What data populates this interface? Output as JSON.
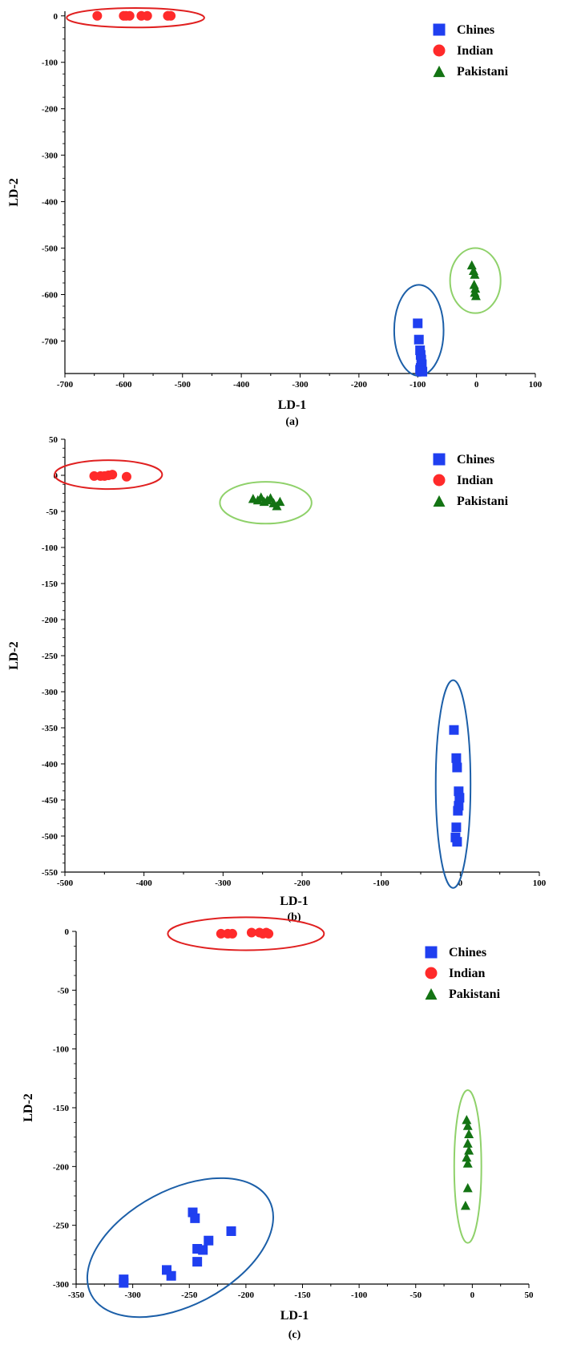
{
  "colors": {
    "Chines": "#1f3ff0",
    "Indian": "#ff2a2a",
    "Pakistani": "#137313",
    "ellipse_Chines": "#1c5fa8",
    "ellipse_Indian": "#e02020",
    "ellipse_Pakistani": "#8fd16a"
  },
  "chart_data": [
    {
      "type": "scatter",
      "panel_label": "(a)",
      "xlabel": "LD-1",
      "ylabel": "LD-2",
      "xlim": [
        -700,
        100
      ],
      "ylim": [
        -770,
        10
      ],
      "xticks": [
        -700,
        -600,
        -500,
        -400,
        -300,
        -200,
        -100,
        0,
        100
      ],
      "yticks": [
        0,
        -100,
        -200,
        -300,
        -400,
        -500,
        -600,
        -700
      ],
      "legend": "top-right",
      "series": [
        {
          "name": "Chines",
          "marker": "square",
          "points": [
            [
              -100,
              -662
            ],
            [
              -98,
              -697
            ],
            [
              -96,
              -720
            ],
            [
              -95,
              -730
            ],
            [
              -94,
              -740
            ],
            [
              -93,
              -750
            ],
            [
              -95,
              -758
            ],
            [
              -96,
              -762
            ],
            [
              -94,
              -765
            ],
            [
              -92,
              -766
            ]
          ]
        },
        {
          "name": "Indian",
          "marker": "circle",
          "points": [
            [
              -645,
              0
            ],
            [
              -600,
              0
            ],
            [
              -596,
              0
            ],
            [
              -590,
              0
            ],
            [
              -570,
              0
            ],
            [
              -560,
              0
            ],
            [
              -525,
              0
            ],
            [
              -520,
              0
            ]
          ]
        },
        {
          "name": "Pakistani",
          "marker": "triangle",
          "points": [
            [
              -8,
              -536
            ],
            [
              -5,
              -548
            ],
            [
              -3,
              -556
            ],
            [
              -4,
              -578
            ],
            [
              -2,
              -586
            ],
            [
              -3,
              -595
            ],
            [
              -1,
              -602
            ]
          ]
        }
      ],
      "ellipses": [
        {
          "series": "Indian",
          "cx": -580,
          "cy": -4,
          "rx": 117,
          "ry": 21
        },
        {
          "series": "Chines",
          "cx": -98,
          "cy": -677,
          "rx": 42,
          "ry": 98
        },
        {
          "series": "Pakistani",
          "cx": -2,
          "cy": -570,
          "rx": 43,
          "ry": 70
        }
      ]
    },
    {
      "type": "scatter",
      "panel_label": "(b)",
      "xlabel": "LD-1",
      "ylabel": "LD-2",
      "xlim": [
        -500,
        100
      ],
      "ylim": [
        -550,
        50
      ],
      "xticks": [
        -500,
        -400,
        -300,
        -200,
        -100,
        0,
        100
      ],
      "yticks": [
        50,
        0,
        -50,
        -100,
        -150,
        -200,
        -250,
        -300,
        -350,
        -400,
        -450,
        -500,
        -550
      ],
      "legend": "top-right",
      "series": [
        {
          "name": "Chines",
          "marker": "square",
          "points": [
            [
              -8,
              -353
            ],
            [
              -5,
              -392
            ],
            [
              -4,
              -405
            ],
            [
              -2,
              -438
            ],
            [
              -1,
              -447
            ],
            [
              -2,
              -458
            ],
            [
              -3,
              -465
            ],
            [
              -5,
              -488
            ],
            [
              -6,
              -502
            ],
            [
              -4,
              -508
            ]
          ]
        },
        {
          "name": "Indian",
          "marker": "circle",
          "points": [
            [
              -463,
              -1
            ],
            [
              -455,
              -1
            ],
            [
              -450,
              -1
            ],
            [
              -445,
              0
            ],
            [
              -440,
              1
            ],
            [
              -422,
              -2
            ]
          ]
        },
        {
          "name": "Pakistani",
          "marker": "triangle",
          "points": [
            [
              -262,
              -32
            ],
            [
              -256,
              -34
            ],
            [
              -252,
              -30
            ],
            [
              -248,
              -36
            ],
            [
              -244,
              -34
            ],
            [
              -240,
              -31
            ],
            [
              -236,
              -38
            ],
            [
              -232,
              -42
            ],
            [
              -228,
              -36
            ]
          ]
        }
      ],
      "ellipses": [
        {
          "series": "Indian",
          "cx": -445,
          "cy": 1,
          "rx": 68,
          "ry": 20
        },
        {
          "series": "Pakistani",
          "cx": -246,
          "cy": -38,
          "rx": 58,
          "ry": 29
        },
        {
          "series": "Chines",
          "cx": -9,
          "cy": -428,
          "rx": 22,
          "ry": 144
        }
      ]
    },
    {
      "type": "scatter",
      "panel_label": "(c)",
      "xlabel": "LD-1",
      "ylabel": "LD-2",
      "xlim": [
        -350,
        50
      ],
      "ylim": [
        -300,
        0
      ],
      "xticks": [
        -350,
        -300,
        -250,
        -200,
        -150,
        -100,
        -50,
        0,
        50
      ],
      "yticks": [
        0,
        -50,
        -100,
        -150,
        -200,
        -250,
        -300
      ],
      "legend": "top-right",
      "series": [
        {
          "name": "Chines",
          "marker": "square",
          "points": [
            [
              -308,
              -296
            ],
            [
              -308,
              -299
            ],
            [
              -270,
              -288
            ],
            [
              -266,
              -293
            ],
            [
              -247,
              -239
            ],
            [
              -245,
              -244
            ],
            [
              -243,
              -270
            ],
            [
              -243,
              -281
            ],
            [
              -238,
              -271
            ],
            [
              -233,
              -263
            ],
            [
              -213,
              -255
            ]
          ]
        },
        {
          "name": "Indian",
          "marker": "circle",
          "points": [
            [
              -222,
              -2
            ],
            [
              -216,
              -2
            ],
            [
              -212,
              -2
            ],
            [
              -195,
              -1
            ],
            [
              -188,
              -1
            ],
            [
              -185,
              -2
            ],
            [
              -182,
              -1
            ],
            [
              -180,
              -2
            ]
          ]
        },
        {
          "name": "Pakistani",
          "marker": "triangle",
          "points": [
            [
              -5,
              -160
            ],
            [
              -4,
              -165
            ],
            [
              -3,
              -172
            ],
            [
              -4,
              -180
            ],
            [
              -3,
              -186
            ],
            [
              -5,
              -192
            ],
            [
              -4,
              -197
            ],
            [
              -4,
              -218
            ],
            [
              -6,
              -233
            ]
          ]
        }
      ],
      "ellipses": [
        {
          "series": "Indian",
          "cx": -200,
          "cy": -2,
          "rx": 69,
          "ry": 14
        },
        {
          "series": "Chines",
          "cx": -258,
          "cy": -269,
          "rx": 89,
          "ry": 49,
          "angle": -28
        },
        {
          "series": "Pakistani",
          "cx": -4,
          "cy": -200,
          "rx": 12,
          "ry": 65
        }
      ]
    }
  ]
}
